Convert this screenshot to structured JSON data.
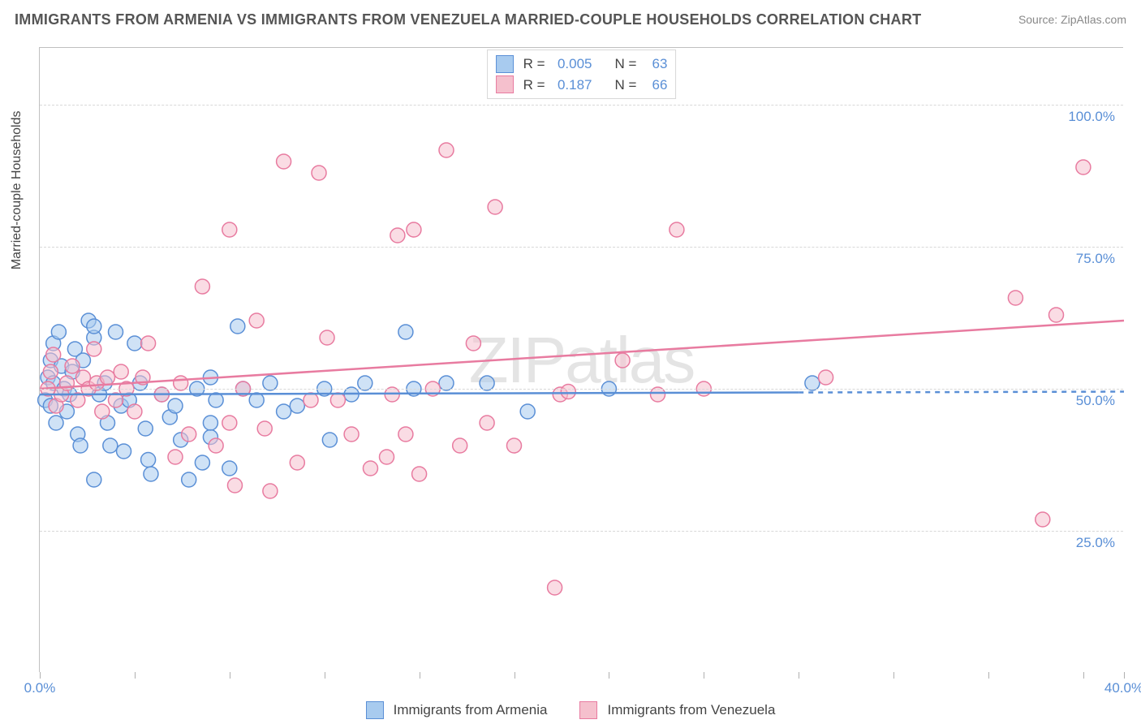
{
  "title": "IMMIGRANTS FROM ARMENIA VS IMMIGRANTS FROM VENEZUELA MARRIED-COUPLE HOUSEHOLDS CORRELATION CHART",
  "source": "Source: ZipAtlas.com",
  "watermark": "ZIPatlas",
  "ylabel": "Married-couple Households",
  "chart": {
    "type": "scatter",
    "background_color": "#ffffff",
    "grid_color": "#d8d8d8",
    "axis_color": "#c0c0c0",
    "tick_label_color": "#5a8fd6",
    "tick_fontsize": 17,
    "xlim": [
      0,
      40
    ],
    "ylim": [
      0,
      110
    ],
    "xticks": [
      0,
      3.5,
      7,
      10.5,
      14,
      17.5,
      21,
      24.5,
      28,
      31.5,
      35,
      38.5,
      40
    ],
    "xtick_labels": {
      "0": "0.0%",
      "40": "40.0%"
    },
    "yticks": [
      25,
      50,
      75,
      100
    ],
    "ytick_labels": {
      "25": "25.0%",
      "50": "50.0%",
      "75": "75.0%",
      "100": "100.0%"
    },
    "marker_radius": 9,
    "marker_opacity": 0.55,
    "line_width": 2.5
  },
  "series": {
    "armenia": {
      "label": "Immigrants from Armenia",
      "color_fill": "#a8cbef",
      "color_stroke": "#5a8fd6",
      "r": "0.005",
      "n": "63",
      "trend": {
        "y_start": 49,
        "y_end": 49.5,
        "x_start": 0,
        "x_solid_end": 28,
        "x_dash_end": 40
      },
      "points": [
        [
          0.2,
          48
        ],
        [
          0.3,
          52
        ],
        [
          0.4,
          55
        ],
        [
          0.5,
          58
        ],
        [
          0.4,
          47
        ],
        [
          0.6,
          44
        ],
        [
          0.5,
          51
        ],
        [
          0.7,
          60
        ],
        [
          0.8,
          54
        ],
        [
          0.9,
          50
        ],
        [
          1.0,
          46
        ],
        [
          1.1,
          49
        ],
        [
          1.2,
          53
        ],
        [
          1.3,
          57
        ],
        [
          1.4,
          42
        ],
        [
          1.5,
          40
        ],
        [
          1.6,
          55
        ],
        [
          1.8,
          62
        ],
        [
          2.0,
          59
        ],
        [
          2.0,
          61
        ],
        [
          2.2,
          49
        ],
        [
          2.4,
          51
        ],
        [
          2.5,
          44
        ],
        [
          2.6,
          40
        ],
        [
          2.8,
          60
        ],
        [
          3.0,
          47
        ],
        [
          3.1,
          39
        ],
        [
          3.3,
          48
        ],
        [
          3.5,
          58
        ],
        [
          3.7,
          51
        ],
        [
          3.9,
          43
        ],
        [
          4.1,
          35
        ],
        [
          4.0,
          37.5
        ],
        [
          4.5,
          49
        ],
        [
          4.8,
          45
        ],
        [
          5.0,
          47
        ],
        [
          5.2,
          41
        ],
        [
          5.5,
          34
        ],
        [
          5.8,
          50
        ],
        [
          6.0,
          37
        ],
        [
          6.3,
          41.5
        ],
        [
          6.3,
          52
        ],
        [
          6.5,
          48
        ],
        [
          6.3,
          44
        ],
        [
          7.0,
          36
        ],
        [
          7.3,
          61
        ],
        [
          7.5,
          50
        ],
        [
          8.0,
          48
        ],
        [
          8.5,
          51
        ],
        [
          9.0,
          46
        ],
        [
          9.5,
          47
        ],
        [
          10.5,
          50
        ],
        [
          10.7,
          41
        ],
        [
          11.5,
          49
        ],
        [
          12.0,
          51
        ],
        [
          13.5,
          60
        ],
        [
          13.8,
          50
        ],
        [
          15.0,
          51
        ],
        [
          16.5,
          51
        ],
        [
          18.0,
          46
        ],
        [
          21.0,
          50
        ],
        [
          28.5,
          51
        ],
        [
          2.0,
          34
        ]
      ]
    },
    "venezuela": {
      "label": "Immigrants from Venezuela",
      "color_fill": "#f5c0cd",
      "color_stroke": "#e87ba0",
      "r": "0.187",
      "n": "66",
      "trend": {
        "y_start": 50,
        "y_end": 62,
        "x_start": 0,
        "x_solid_end": 40,
        "x_dash_end": 40
      },
      "points": [
        [
          0.3,
          50
        ],
        [
          0.4,
          53
        ],
        [
          0.5,
          56
        ],
        [
          0.6,
          47
        ],
        [
          0.8,
          49
        ],
        [
          1.0,
          51
        ],
        [
          1.2,
          54
        ],
        [
          1.4,
          48
        ],
        [
          1.6,
          52
        ],
        [
          1.8,
          50
        ],
        [
          2.0,
          57
        ],
        [
          2.1,
          51
        ],
        [
          2.3,
          46
        ],
        [
          2.5,
          52
        ],
        [
          2.8,
          48
        ],
        [
          3.0,
          53
        ],
        [
          3.2,
          50
        ],
        [
          3.5,
          46
        ],
        [
          3.8,
          52
        ],
        [
          4.0,
          58
        ],
        [
          4.5,
          49
        ],
        [
          5.0,
          38
        ],
        [
          5.5,
          42
        ],
        [
          5.2,
          51
        ],
        [
          6.0,
          68
        ],
        [
          6.5,
          40
        ],
        [
          7.0,
          44
        ],
        [
          7.2,
          33
        ],
        [
          7.0,
          78
        ],
        [
          7.5,
          50
        ],
        [
          8.0,
          62
        ],
        [
          8.3,
          43
        ],
        [
          8.5,
          32
        ],
        [
          9.0,
          90
        ],
        [
          9.5,
          37
        ],
        [
          10.0,
          48
        ],
        [
          10.3,
          88
        ],
        [
          10.6,
          59
        ],
        [
          11.0,
          48
        ],
        [
          11.5,
          42
        ],
        [
          12.2,
          36
        ],
        [
          12.8,
          38
        ],
        [
          13.0,
          49
        ],
        [
          13.2,
          77
        ],
        [
          13.5,
          42
        ],
        [
          13.8,
          78
        ],
        [
          14.0,
          35
        ],
        [
          14.5,
          50
        ],
        [
          15.0,
          92
        ],
        [
          15.5,
          40
        ],
        [
          16.0,
          58
        ],
        [
          16.5,
          44
        ],
        [
          16.8,
          82
        ],
        [
          17.5,
          40
        ],
        [
          19.0,
          15
        ],
        [
          19.2,
          49
        ],
        [
          19.5,
          49.5
        ],
        [
          21.5,
          55
        ],
        [
          22.8,
          49
        ],
        [
          23.5,
          78
        ],
        [
          24.5,
          50
        ],
        [
          29.0,
          52
        ],
        [
          36.0,
          66
        ],
        [
          37.0,
          27
        ],
        [
          38.5,
          89
        ],
        [
          37.5,
          63
        ]
      ]
    }
  }
}
